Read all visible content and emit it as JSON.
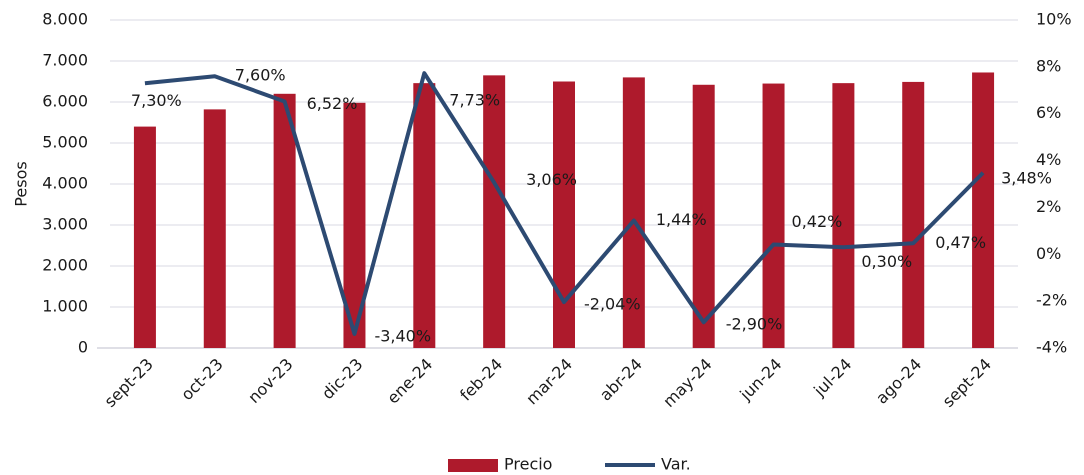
{
  "chart_data": {
    "type": "bar_line",
    "y_label": "Pesos",
    "categories": [
      "sept-23",
      "oct-23",
      "nov-23",
      "dic-23",
      "ene-24",
      "feb-24",
      "mar-24",
      "abr-24",
      "may-24",
      "jun-24",
      "jul-24",
      "ago-24",
      "sept-24"
    ],
    "series": [
      {
        "name": "Precio",
        "type": "bar",
        "color": "#ae1a2c",
        "values": [
          5400,
          5820,
          6200,
          5980,
          6460,
          6650,
          6500,
          6600,
          6420,
          6450,
          6460,
          6490,
          6720
        ]
      },
      {
        "name": "Var.",
        "type": "line",
        "axis": "y2",
        "color": "#2d4a72",
        "values": [
          7.3,
          7.6,
          6.52,
          -3.4,
          7.73,
          3.06,
          -2.04,
          1.44,
          -2.9,
          0.42,
          0.3,
          0.47,
          3.48
        ],
        "value_labels": [
          "7,30%",
          "7,60%",
          "6,52%",
          "-3,40%",
          "7,73%",
          "3,06%",
          "-2,04%",
          "1,44%",
          "-2,90%",
          "0,42%",
          "0,30%",
          "0,47%",
          "3,48%"
        ]
      }
    ],
    "ylim": [
      0,
      8000
    ],
    "yticks": [
      0,
      {
        "value": 1000,
        "label": "1.000"
      },
      {
        "value": 2000,
        "label": "2.000"
      },
      {
        "value": 3000,
        "label": "3.000"
      },
      {
        "value": 4000,
        "label": "4.000"
      },
      {
        "value": 5000,
        "label": "5.000"
      },
      {
        "value": 6000,
        "label": "6.000"
      },
      {
        "value": 7000,
        "label": "7.000"
      },
      {
        "value": 8000,
        "label": "8.000"
      }
    ],
    "y2lim": [
      -4,
      10
    ],
    "y2ticks": [
      {
        "value": -4,
        "label": "-4%"
      },
      {
        "value": -2,
        "label": "-2%"
      },
      {
        "value": 0,
        "label": "0%"
      },
      {
        "value": 2,
        "label": "2%"
      },
      {
        "value": 4,
        "label": "4%"
      },
      {
        "value": 6,
        "label": "6%"
      },
      {
        "value": 8,
        "label": "8%"
      },
      {
        "value": 10,
        "label": "10%"
      }
    ],
    "grid": true,
    "legend": "bottom"
  }
}
